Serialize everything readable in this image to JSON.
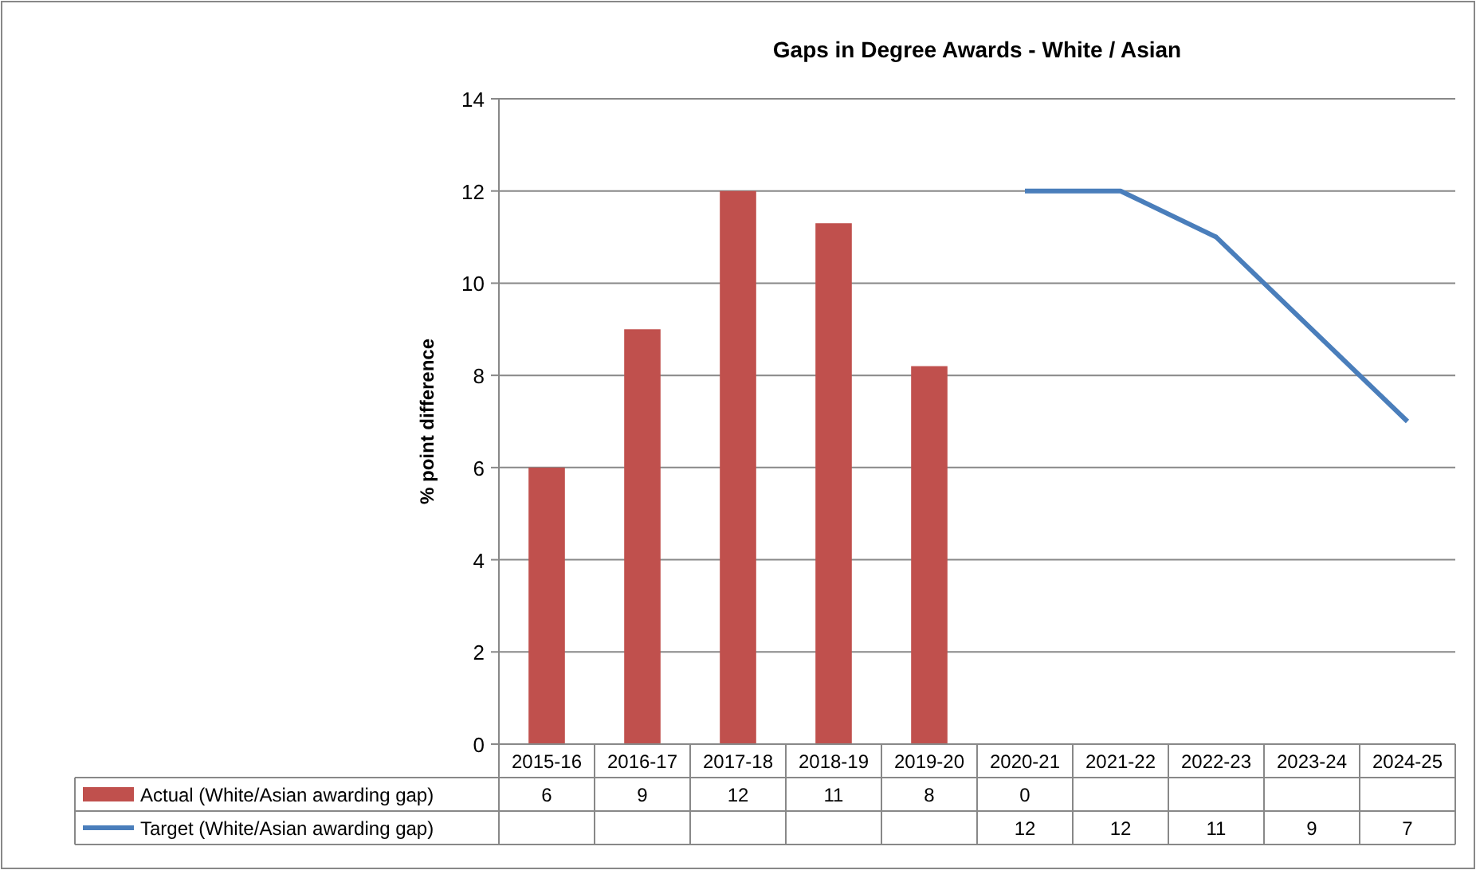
{
  "chart_data": {
    "type": "bar",
    "title": "Gaps in Degree Awards - White / Asian",
    "ylabel": "% point difference",
    "categories": [
      "2015-16",
      "2016-17",
      "2017-18",
      "2018-19",
      "2019-20",
      "2020-21",
      "2021-22",
      "2022-23",
      "2023-24",
      "2024-25"
    ],
    "series": [
      {
        "name": "Actual (White/Asian awarding gap)",
        "color": "#c0504d",
        "values": [
          6,
          9,
          12,
          11.3,
          8.2,
          0,
          null,
          null,
          null,
          null
        ],
        "value_labels": [
          "6",
          "9",
          "12",
          "11",
          "8",
          "0",
          null,
          null,
          null,
          null
        ]
      },
      {
        "name": "Target (White/Asian awarding gap)",
        "type": "line",
        "color": "#4a7ebb",
        "values": [
          null,
          null,
          null,
          null,
          null,
          12,
          12,
          11,
          9,
          7
        ],
        "value_labels": [
          null,
          null,
          null,
          null,
          null,
          "12",
          "12",
          "11",
          "9",
          "7"
        ]
      }
    ],
    "ylim": [
      0,
      14
    ],
    "yticks": [
      0,
      2,
      4,
      6,
      8,
      10,
      12,
      14
    ],
    "grid": "y",
    "legend": "bottom",
    "marker": "none",
    "line_style": "solid"
  }
}
